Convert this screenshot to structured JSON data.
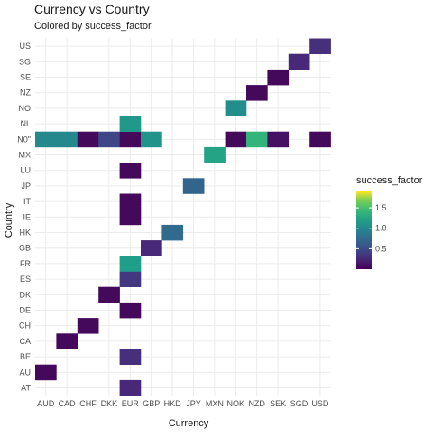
{
  "chart_data": {
    "type": "heatmap",
    "title": "Currency vs Country",
    "subtitle": "Colored by success_factor",
    "xlabel": "Currency",
    "ylabel": "Country",
    "x_categories": [
      "AUD",
      "CAD",
      "CHF",
      "DKK",
      "EUR",
      "GBP",
      "HKD",
      "JPY",
      "MXN",
      "NOK",
      "NZD",
      "SEK",
      "SGD",
      "USD"
    ],
    "y_categories": [
      "AT",
      "AU",
      "BE",
      "CA",
      "CH",
      "DE",
      "DK",
      "ES",
      "FR",
      "GB",
      "HK",
      "IE",
      "IT",
      "JP",
      "LU",
      "MX",
      "N0\"",
      "NL",
      "NO",
      "NZ",
      "SE",
      "SG",
      "US"
    ],
    "legend": {
      "title": "success_factor",
      "ticks": [
        0.5,
        1.0,
        1.5
      ],
      "tick_labels": [
        "0.5",
        "1.0",
        "1.5"
      ],
      "range": [
        0.0,
        1.9
      ],
      "position": "right"
    },
    "colors": {
      "background": "#ffffff",
      "grid": "#ebebeb",
      "text": "#4d4d4d",
      "title": "#1a1a1a"
    },
    "cells": [
      {
        "x": "EUR",
        "y": "AT",
        "value": 0.25
      },
      {
        "x": "AUD",
        "y": "AU",
        "value": 0.05
      },
      {
        "x": "EUR",
        "y": "BE",
        "value": 0.3
      },
      {
        "x": "CAD",
        "y": "CA",
        "value": 0.05
      },
      {
        "x": "CHF",
        "y": "CH",
        "value": 0.05
      },
      {
        "x": "EUR",
        "y": "DE",
        "value": 0.05
      },
      {
        "x": "DKK",
        "y": "DK",
        "value": 0.05
      },
      {
        "x": "EUR",
        "y": "ES",
        "value": 0.35
      },
      {
        "x": "EUR",
        "y": "FR",
        "value": 1.2
      },
      {
        "x": "GBP",
        "y": "GB",
        "value": 0.25
      },
      {
        "x": "HKD",
        "y": "HK",
        "value": 0.75
      },
      {
        "x": "EUR",
        "y": "IE",
        "value": 0.05
      },
      {
        "x": "EUR",
        "y": "IT",
        "value": 0.05
      },
      {
        "x": "JPY",
        "y": "JP",
        "value": 0.7
      },
      {
        "x": "EUR",
        "y": "LU",
        "value": 0.05
      },
      {
        "x": "MXN",
        "y": "MX",
        "value": 1.25
      },
      {
        "x": "AUD",
        "y": "N0\"",
        "value": 1.0
      },
      {
        "x": "CAD",
        "y": "N0\"",
        "value": 1.0
      },
      {
        "x": "CHF",
        "y": "N0\"",
        "value": 0.05
      },
      {
        "x": "DKK",
        "y": "N0\"",
        "value": 0.45
      },
      {
        "x": "EUR",
        "y": "N0\"",
        "value": 0.05
      },
      {
        "x": "GBP",
        "y": "N0\"",
        "value": 1.1
      },
      {
        "x": "NOK",
        "y": "N0\"",
        "value": 0.05
      },
      {
        "x": "NZD",
        "y": "N0\"",
        "value": 1.4
      },
      {
        "x": "SEK",
        "y": "N0\"",
        "value": 0.1
      },
      {
        "x": "USD",
        "y": "N0\"",
        "value": 0.05
      },
      {
        "x": "EUR",
        "y": "NL",
        "value": 1.15
      },
      {
        "x": "NOK",
        "y": "NO",
        "value": 1.05
      },
      {
        "x": "NZD",
        "y": "NZ",
        "value": 0.05
      },
      {
        "x": "SEK",
        "y": "SE",
        "value": 0.05
      },
      {
        "x": "SGD",
        "y": "SG",
        "value": 0.25
      },
      {
        "x": "USD",
        "y": "US",
        "value": 0.3
      }
    ]
  }
}
